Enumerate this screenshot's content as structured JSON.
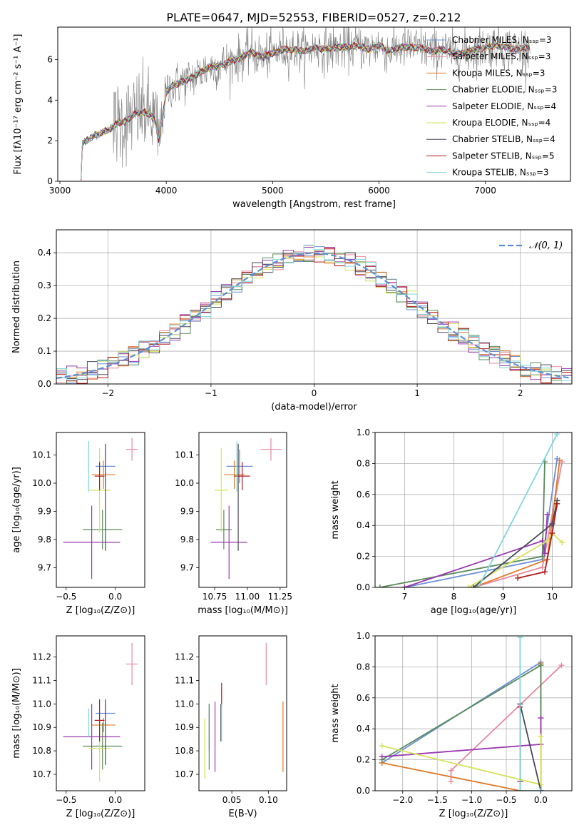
{
  "title": "PLATE=0647, MJD=52553, FIBERID=0527, z=0.212",
  "colors": {
    "Chabrier MILES": "#6b8fd6",
    "Salpeter MILES": "#e8899f",
    "Kroupa MILES": "#e07a2a",
    "Chabrier ELODIE": "#5a8a5a",
    "Salpeter ELODIE": "#9a3ab0",
    "Kroupa ELODIE": "#d6e25a",
    "Chabrier STELIB": "#4a4a5a",
    "Salpeter STELIB": "#b01a1a",
    "Kroupa STELIB": "#7fd6de",
    "data": "#808080",
    "gauss": "#5b8fd6"
  },
  "chart_data": [
    {
      "id": "spectrum",
      "type": "line",
      "xlabel": "wavelength [Angstrom, rest frame]",
      "ylabel": "Flux [fλ10⁻¹⁷ erg cm⁻² s⁻¹ A⁻¹]",
      "xlim": [
        2980,
        7800
      ],
      "ylim": [
        0,
        7.6
      ],
      "xticks": [
        3000,
        4000,
        5000,
        6000,
        7000
      ],
      "yticks": [
        0,
        2,
        4,
        6
      ],
      "legend_position": "top-right",
      "legend": [
        "Chabrier MILES, Nₛₛₚ=3",
        "Salpeter MILES, Nₛₛₚ=3",
        "Kroupa MILES, Nₛₛₚ=3",
        "Chabrier ELODIE, Nₛₛₚ=3",
        "Salpeter ELODIE, Nₛₛₚ=4",
        "Kroupa ELODIE, Nₛₛₚ=4",
        "Chabrier STELIB, Nₛₛₚ=4",
        "Salpeter STELIB, Nₛₛₚ=5",
        "Kroupa STELIB, Nₛₛₚ=3"
      ],
      "legend_keys": [
        "Chabrier MILES",
        "Salpeter MILES",
        "Kroupa MILES",
        "Chabrier ELODIE",
        "Salpeter ELODIE",
        "Kroupa ELODIE",
        "Chabrier STELIB",
        "Salpeter STELIB",
        "Kroupa STELIB"
      ],
      "model_x": [
        3200,
        3210,
        3250,
        3300,
        3350,
        3400,
        3450,
        3500,
        3550,
        3600,
        3650,
        3700,
        3750,
        3800,
        3850,
        3900,
        3930,
        3960,
        4000,
        4050,
        4100,
        4200,
        4300,
        4400,
        4500,
        4600,
        4700,
        4800,
        4900,
        5000,
        5100,
        5200,
        5300,
        5400,
        5500,
        5600,
        5700,
        5800,
        5900,
        6000,
        6100,
        6200,
        6300,
        6400,
        6500,
        6600,
        6700,
        6800,
        6900,
        7000,
        7100,
        7200,
        7300,
        7400
      ],
      "model_y": [
        0.2,
        1.9,
        2.0,
        2.2,
        2.3,
        2.4,
        2.5,
        2.7,
        2.9,
        2.9,
        3.1,
        3.3,
        3.4,
        3.4,
        3.3,
        2.9,
        2.0,
        3.0,
        4.4,
        4.7,
        4.8,
        5.0,
        5.3,
        5.6,
        5.7,
        5.9,
        6.1,
        6.4,
        6.1,
        6.3,
        6.5,
        6.5,
        6.4,
        6.6,
        6.5,
        6.6,
        6.6,
        6.7,
        6.5,
        6.7,
        6.4,
        6.6,
        6.6,
        6.6,
        6.4,
        6.5,
        6.3,
        6.3,
        6.5,
        6.6,
        6.7,
        6.6,
        6.5,
        6.6
      ]
    },
    {
      "id": "residual-hist",
      "type": "line",
      "xlabel": "(data-model)/error",
      "ylabel": "Normed distribution",
      "xlim": [
        -2.5,
        2.5
      ],
      "ylim": [
        0,
        0.47
      ],
      "xticks": [
        -2,
        -1,
        0,
        1,
        2
      ],
      "yticks": [
        0.0,
        0.1,
        0.2,
        0.3,
        0.4
      ],
      "legend_position": "top-right",
      "legend": [
        "𝒩(0, 1)"
      ],
      "bin_width": 0.1
    },
    {
      "id": "age-vs-Z",
      "type": "scatter",
      "xlabel": "Z [log₁₀(Z/Z⊙)]",
      "ylabel": "age  [log₁₀(age/yr)]",
      "xlim": [
        -0.6,
        0.3
      ],
      "ylim": [
        9.63,
        10.18
      ],
      "xticks": [
        -0.5,
        0.0
      ],
      "yticks": [
        9.7,
        9.8,
        9.9,
        10.0,
        10.1
      ],
      "points": [
        {
          "model": "Chabrier MILES",
          "x": -0.1,
          "y": 10.06,
          "xerr": 0.1,
          "yerr": 0.06
        },
        {
          "model": "Salpeter MILES",
          "x": 0.17,
          "y": 10.12,
          "xerr": 0.06,
          "yerr": 0.04
        },
        {
          "model": "Kroupa MILES",
          "x": -0.12,
          "y": 10.03,
          "xerr": 0.12,
          "yerr": 0.05
        },
        {
          "model": "Chabrier ELODIE",
          "x": -0.13,
          "y": 9.835,
          "xerr": 0.2,
          "yerr": 0.07
        },
        {
          "model": "Salpeter ELODIE",
          "x": -0.24,
          "y": 9.79,
          "xerr": 0.29,
          "yerr": 0.13
        },
        {
          "model": "Kroupa ELODIE",
          "x": -0.16,
          "y": 9.975,
          "xerr": 0.11,
          "yerr": 0.15
        },
        {
          "model": "Chabrier STELIB",
          "x": -0.1,
          "y": 9.95,
          "xerr": 0.0,
          "yerr": 0.19
        },
        {
          "model": "Salpeter STELIB",
          "x": -0.16,
          "y": 10.025,
          "xerr": 0.05,
          "yerr": 0.05
        },
        {
          "model": "Kroupa STELIB",
          "x": -0.27,
          "y": 10.06,
          "xerr": 0.0,
          "yerr": 0.09
        }
      ]
    },
    {
      "id": "age-vs-mass",
      "type": "scatter",
      "xlabel": "mass [log₁₀(M/M⊙)]",
      "ylabel": "",
      "xlim": [
        10.63,
        11.3
      ],
      "ylim": [
        9.63,
        10.18
      ],
      "xticks": [
        10.75,
        11.0,
        11.25
      ],
      "yticks": [
        9.7,
        9.8,
        9.9,
        10.0,
        10.1
      ],
      "points": [
        {
          "model": "Chabrier MILES",
          "x": 10.94,
          "y": 10.06,
          "xerr": 0.1,
          "yerr": 0.06
        },
        {
          "model": "Salpeter MILES",
          "x": 11.18,
          "y": 10.12,
          "xerr": 0.08,
          "yerr": 0.04
        },
        {
          "model": "Kroupa MILES",
          "x": 10.9,
          "y": 10.03,
          "xerr": 0.08,
          "yerr": 0.05
        },
        {
          "model": "Chabrier ELODIE",
          "x": 10.82,
          "y": 9.835,
          "xerr": 0.06,
          "yerr": 0.07
        },
        {
          "model": "Salpeter ELODIE",
          "x": 10.86,
          "y": 9.79,
          "xerr": 0.14,
          "yerr": 0.13
        },
        {
          "model": "Kroupa ELODIE",
          "x": 10.8,
          "y": 9.975,
          "xerr": 0.05,
          "yerr": 0.15
        },
        {
          "model": "Chabrier STELIB",
          "x": 10.93,
          "y": 9.95,
          "xerr": 0.0,
          "yerr": 0.19
        },
        {
          "model": "Salpeter STELIB",
          "x": 10.96,
          "y": 10.025,
          "xerr": 0.06,
          "yerr": 0.05
        },
        {
          "model": "Kroupa STELIB",
          "x": 10.92,
          "y": 10.06,
          "xerr": 0.0,
          "yerr": 0.09
        }
      ]
    },
    {
      "id": "mass-weight-vs-age",
      "type": "line",
      "xlabel": "age  [log₁₀(age/yr)]",
      "ylabel": "mass weight",
      "xlim": [
        6.4,
        10.4
      ],
      "ylim": [
        0,
        1
      ],
      "xticks": [
        7,
        8,
        9,
        10
      ],
      "yticks": [
        0.0,
        0.2,
        0.4,
        0.6,
        0.8,
        1.0
      ],
      "grid": true,
      "series": [
        {
          "model": "Chabrier MILES",
          "x": [
            7.0,
            9.8,
            10.1
          ],
          "y": [
            0.0,
            0.18,
            0.83
          ]
        },
        {
          "model": "Salpeter MILES",
          "x": [
            8.4,
            9.8,
            10.2
          ],
          "y": [
            0.0,
            0.13,
            0.81
          ]
        },
        {
          "model": "Kroupa MILES",
          "x": [
            8.4,
            9.9,
            10.15
          ],
          "y": [
            0.0,
            0.18,
            0.82
          ]
        },
        {
          "model": "Chabrier ELODIE",
          "x": [
            6.5,
            9.8,
            9.85
          ],
          "y": [
            0.0,
            0.2,
            0.81
          ]
        },
        {
          "model": "Salpeter ELODIE",
          "x": [
            7.0,
            9.8,
            9.85,
            9.9
          ],
          "y": [
            0.0,
            0.3,
            0.22,
            0.47
          ]
        },
        {
          "model": "Kroupa ELODIE",
          "x": [
            8.3,
            9.9,
            10.0,
            10.2
          ],
          "y": [
            0.0,
            0.3,
            0.35,
            0.29
          ]
        },
        {
          "model": "Chabrier STELIB",
          "x": [
            8.4,
            10.0,
            10.1
          ],
          "y": [
            0.0,
            0.41,
            0.56
          ]
        },
        {
          "model": "Salpeter STELIB",
          "x": [
            9.3,
            9.85,
            10.0,
            10.1
          ],
          "y": [
            0.06,
            0.1,
            0.35,
            0.54
          ]
        },
        {
          "model": "Kroupa STELIB",
          "x": [
            8.5,
            10.1
          ],
          "y": [
            0.0,
            0.99
          ]
        }
      ]
    },
    {
      "id": "mass-vs-Z",
      "type": "scatter",
      "xlabel": "Z [log₁₀(Z/Z⊙)]",
      "ylabel": "mass [log₁₀(M/M⊙)]",
      "xlim": [
        -0.6,
        0.3
      ],
      "ylim": [
        10.63,
        11.29
      ],
      "xticks": [
        -0.5,
        0.0
      ],
      "yticks": [
        10.7,
        10.8,
        10.9,
        11.0,
        11.1,
        11.2
      ],
      "points": [
        {
          "model": "Chabrier MILES",
          "x": -0.1,
          "y": 10.96,
          "xerr": 0.1,
          "yerr": 0.05
        },
        {
          "model": "Salpeter MILES",
          "x": 0.17,
          "y": 11.17,
          "xerr": 0.06,
          "yerr": 0.09
        },
        {
          "model": "Kroupa MILES",
          "x": -0.12,
          "y": 10.91,
          "xerr": 0.12,
          "yerr": 0.03
        },
        {
          "model": "Chabrier ELODIE",
          "x": -0.13,
          "y": 10.82,
          "xerr": 0.2,
          "yerr": 0.1
        },
        {
          "model": "Salpeter ELODIE",
          "x": -0.24,
          "y": 10.86,
          "xerr": 0.29,
          "yerr": 0.14
        },
        {
          "model": "Kroupa ELODIE",
          "x": -0.16,
          "y": 10.81,
          "xerr": 0.11,
          "yerr": 0.14
        },
        {
          "model": "Chabrier STELIB",
          "x": -0.1,
          "y": 10.88,
          "xerr": 0.0,
          "yerr": 0.14
        },
        {
          "model": "Salpeter STELIB",
          "x": -0.16,
          "y": 10.93,
          "xerr": 0.05,
          "yerr": 0.09
        },
        {
          "model": "Kroupa STELIB",
          "x": -0.27,
          "y": 10.92,
          "xerr": 0.0,
          "yerr": 0.06
        }
      ]
    },
    {
      "id": "mass-vs-EBV",
      "type": "scatter",
      "xlabel": "E(B-V)",
      "ylabel": "",
      "xlim": [
        0.005,
        0.125
      ],
      "ylim": [
        10.63,
        11.29
      ],
      "xticks": [
        0.05,
        0.1
      ],
      "yticks": [
        10.7,
        10.8,
        10.9,
        11.0,
        11.1,
        11.2
      ],
      "points": [
        {
          "model": "Chabrier MILES",
          "x": 0.019,
          "y": 10.9,
          "xerr": 0,
          "yerr": 0.1
        },
        {
          "model": "Salpeter MILES",
          "x": 0.097,
          "y": 11.17,
          "xerr": 0,
          "yerr": 0.09
        },
        {
          "model": "Kroupa MILES",
          "x": 0.12,
          "y": 10.86,
          "xerr": 0,
          "yerr": 0.15
        },
        {
          "model": "Chabrier ELODIE",
          "x": 0.019,
          "y": 10.86,
          "xerr": 0,
          "yerr": 0.14
        },
        {
          "model": "Salpeter ELODIE",
          "x": 0.027,
          "y": 10.86,
          "xerr": 0,
          "yerr": 0.15
        },
        {
          "model": "Kroupa ELODIE",
          "x": 0.013,
          "y": 10.81,
          "xerr": 0,
          "yerr": 0.13
        },
        {
          "model": "Chabrier STELIB",
          "x": 0.035,
          "y": 10.92,
          "xerr": 0,
          "yerr": 0.08
        },
        {
          "model": "Salpeter STELIB",
          "x": 0.036,
          "y": 11.04,
          "xerr": 0,
          "yerr": 0.05
        },
        {
          "model": "Kroupa STELIB",
          "x": 0.036,
          "y": 10.92,
          "xerr": 0,
          "yerr": 0.08
        }
      ]
    },
    {
      "id": "mass-weight-vs-Z",
      "type": "line",
      "xlabel": "Z [log₁₀(Z/Z⊙)]",
      "ylabel": "mass weight",
      "xlim": [
        -2.4,
        0.45
      ],
      "ylim": [
        0,
        1
      ],
      "xticks": [
        -2.0,
        -1.5,
        -1.0,
        -0.5,
        0.0
      ],
      "yticks": [
        0.0,
        0.2,
        0.4,
        0.6,
        0.8,
        1.0
      ],
      "grid": true,
      "series": [
        {
          "model": "Chabrier MILES",
          "x": [
            -2.3,
            0.0,
            0.0
          ],
          "y": [
            0.18,
            0.83,
            0.0
          ]
        },
        {
          "model": "Salpeter MILES",
          "x": [
            -1.3,
            -1.3,
            0.3
          ],
          "y": [
            0.06,
            0.13,
            0.81
          ]
        },
        {
          "model": "Kroupa MILES",
          "x": [
            -2.3,
            -0.3,
            0.0,
            0.0
          ],
          "y": [
            0.18,
            0.0,
            0.0,
            0.82
          ]
        },
        {
          "model": "Chabrier ELODIE",
          "x": [
            -2.3,
            0.0,
            0.0
          ],
          "y": [
            0.2,
            0.81,
            0.0
          ]
        },
        {
          "model": "Salpeter ELODIE",
          "x": [
            -2.3,
            0.0,
            0.0
          ],
          "y": [
            0.22,
            0.3,
            0.47
          ]
        },
        {
          "model": "Kroupa ELODIE",
          "x": [
            -2.3,
            0.0,
            0.0
          ],
          "y": [
            0.29,
            0.04,
            0.35
          ]
        },
        {
          "model": "Chabrier STELIB",
          "x": [
            -0.3,
            -0.3,
            0.0
          ],
          "y": [
            0.0,
            0.56,
            0.0
          ]
        },
        {
          "model": "Salpeter STELIB",
          "x": [
            -0.3,
            -0.3
          ],
          "y": [
            0.06,
            0.54
          ]
        },
        {
          "model": "Kroupa STELIB",
          "x": [
            -0.3,
            -0.3,
            0.0
          ],
          "y": [
            0.99,
            0.0,
            0.0
          ]
        }
      ]
    }
  ]
}
